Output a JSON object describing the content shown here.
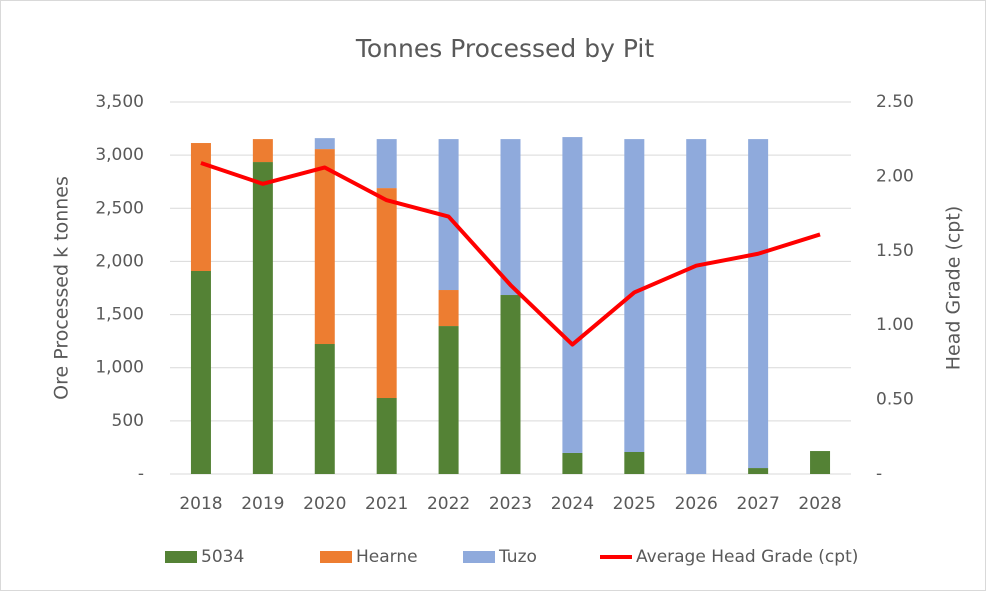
{
  "chart_data": {
    "type": "bar",
    "stacked": true,
    "title": "Tonnes Processed by Pit",
    "ylabel": "Ore Processed k tonnes",
    "y2label": "Head Grade (cpt)",
    "categories": [
      "2018",
      "2019",
      "2020",
      "2021",
      "2022",
      "2023",
      "2024",
      "2025",
      "2026",
      "2027",
      "2028"
    ],
    "series": [
      {
        "name": "5034",
        "color": "#548235",
        "values": [
          1910,
          2935,
          1223,
          715,
          1392,
          1684,
          198,
          207,
          0,
          56,
          216
        ]
      },
      {
        "name": "Hearne",
        "color": "#ed7d31",
        "values": [
          1204,
          216,
          1834,
          1975,
          339,
          0,
          0,
          0,
          0,
          0,
          0
        ]
      },
      {
        "name": "Tuzo",
        "color": "#8faadc",
        "values": [
          0,
          0,
          103,
          461,
          1420,
          1467,
          2972,
          2944,
          3151,
          3095,
          0
        ]
      },
      {
        "name": "Average Head Grade (cpt)",
        "color": "#ff0000",
        "type": "line",
        "axis": "y2",
        "values": [
          2.09,
          1.95,
          2.06,
          1.84,
          1.73,
          1.27,
          0.87,
          1.22,
          1.4,
          1.48,
          1.61
        ]
      }
    ],
    "ylim": [
      0,
      3500
    ],
    "yticks": [
      {
        "value": 0,
        "label": "-"
      },
      500,
      {
        "value": 1000,
        "label": "1,000"
      },
      {
        "value": 1500,
        "label": "1,500"
      },
      {
        "value": 2000,
        "label": "2,000"
      },
      {
        "value": 2500,
        "label": "2,500"
      },
      {
        "value": 3000,
        "label": "3,000"
      },
      {
        "value": 3500,
        "label": "3,500"
      }
    ],
    "y2lim": [
      0,
      2.5
    ],
    "y2ticks": [
      {
        "value": 0,
        "label": "-"
      },
      {
        "value": 0.5,
        "label": "0.50"
      },
      {
        "value": 1,
        "label": "1.00"
      },
      {
        "value": 1.5,
        "label": "1.50"
      },
      {
        "value": 2,
        "label": "2.00"
      },
      {
        "value": 2.5,
        "label": "2.50"
      }
    ],
    "grid": true,
    "legend": "bottom"
  }
}
